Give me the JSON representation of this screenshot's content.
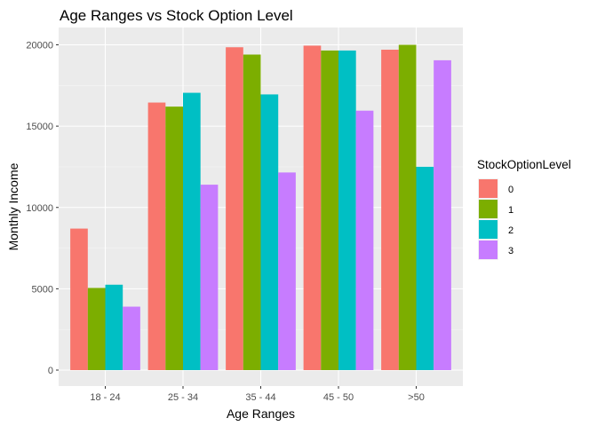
{
  "chart_data": {
    "type": "bar",
    "title": "Age Ranges vs Stock Option Level",
    "xlabel": "Age Ranges",
    "ylabel": "Monthly Income",
    "categories": [
      "18 - 24",
      "25 - 34",
      "35 - 44",
      "45 - 50",
      ">50"
    ],
    "ylim": [
      -900,
      21000
    ],
    "yticks": [
      0,
      5000,
      10000,
      15000,
      20000
    ],
    "ytick_labels": [
      "0",
      "5000",
      "10000",
      "15000",
      "20000"
    ],
    "grid": true,
    "legend": {
      "title": "StockOptionLevel",
      "placement": "right"
    },
    "series": [
      {
        "name": "0",
        "color": "#F8766D",
        "values": [
          8700,
          16450,
          19850,
          19950,
          19700
        ]
      },
      {
        "name": "1",
        "color": "#7CAE00",
        "values": [
          5050,
          16200,
          19400,
          19650,
          20000
        ]
      },
      {
        "name": "2",
        "color": "#00BFC4",
        "values": [
          5250,
          17050,
          16950,
          19650,
          12500
        ]
      },
      {
        "name": "3",
        "color": "#C77CFF",
        "values": [
          3900,
          11400,
          12150,
          15950,
          19050
        ]
      }
    ]
  }
}
